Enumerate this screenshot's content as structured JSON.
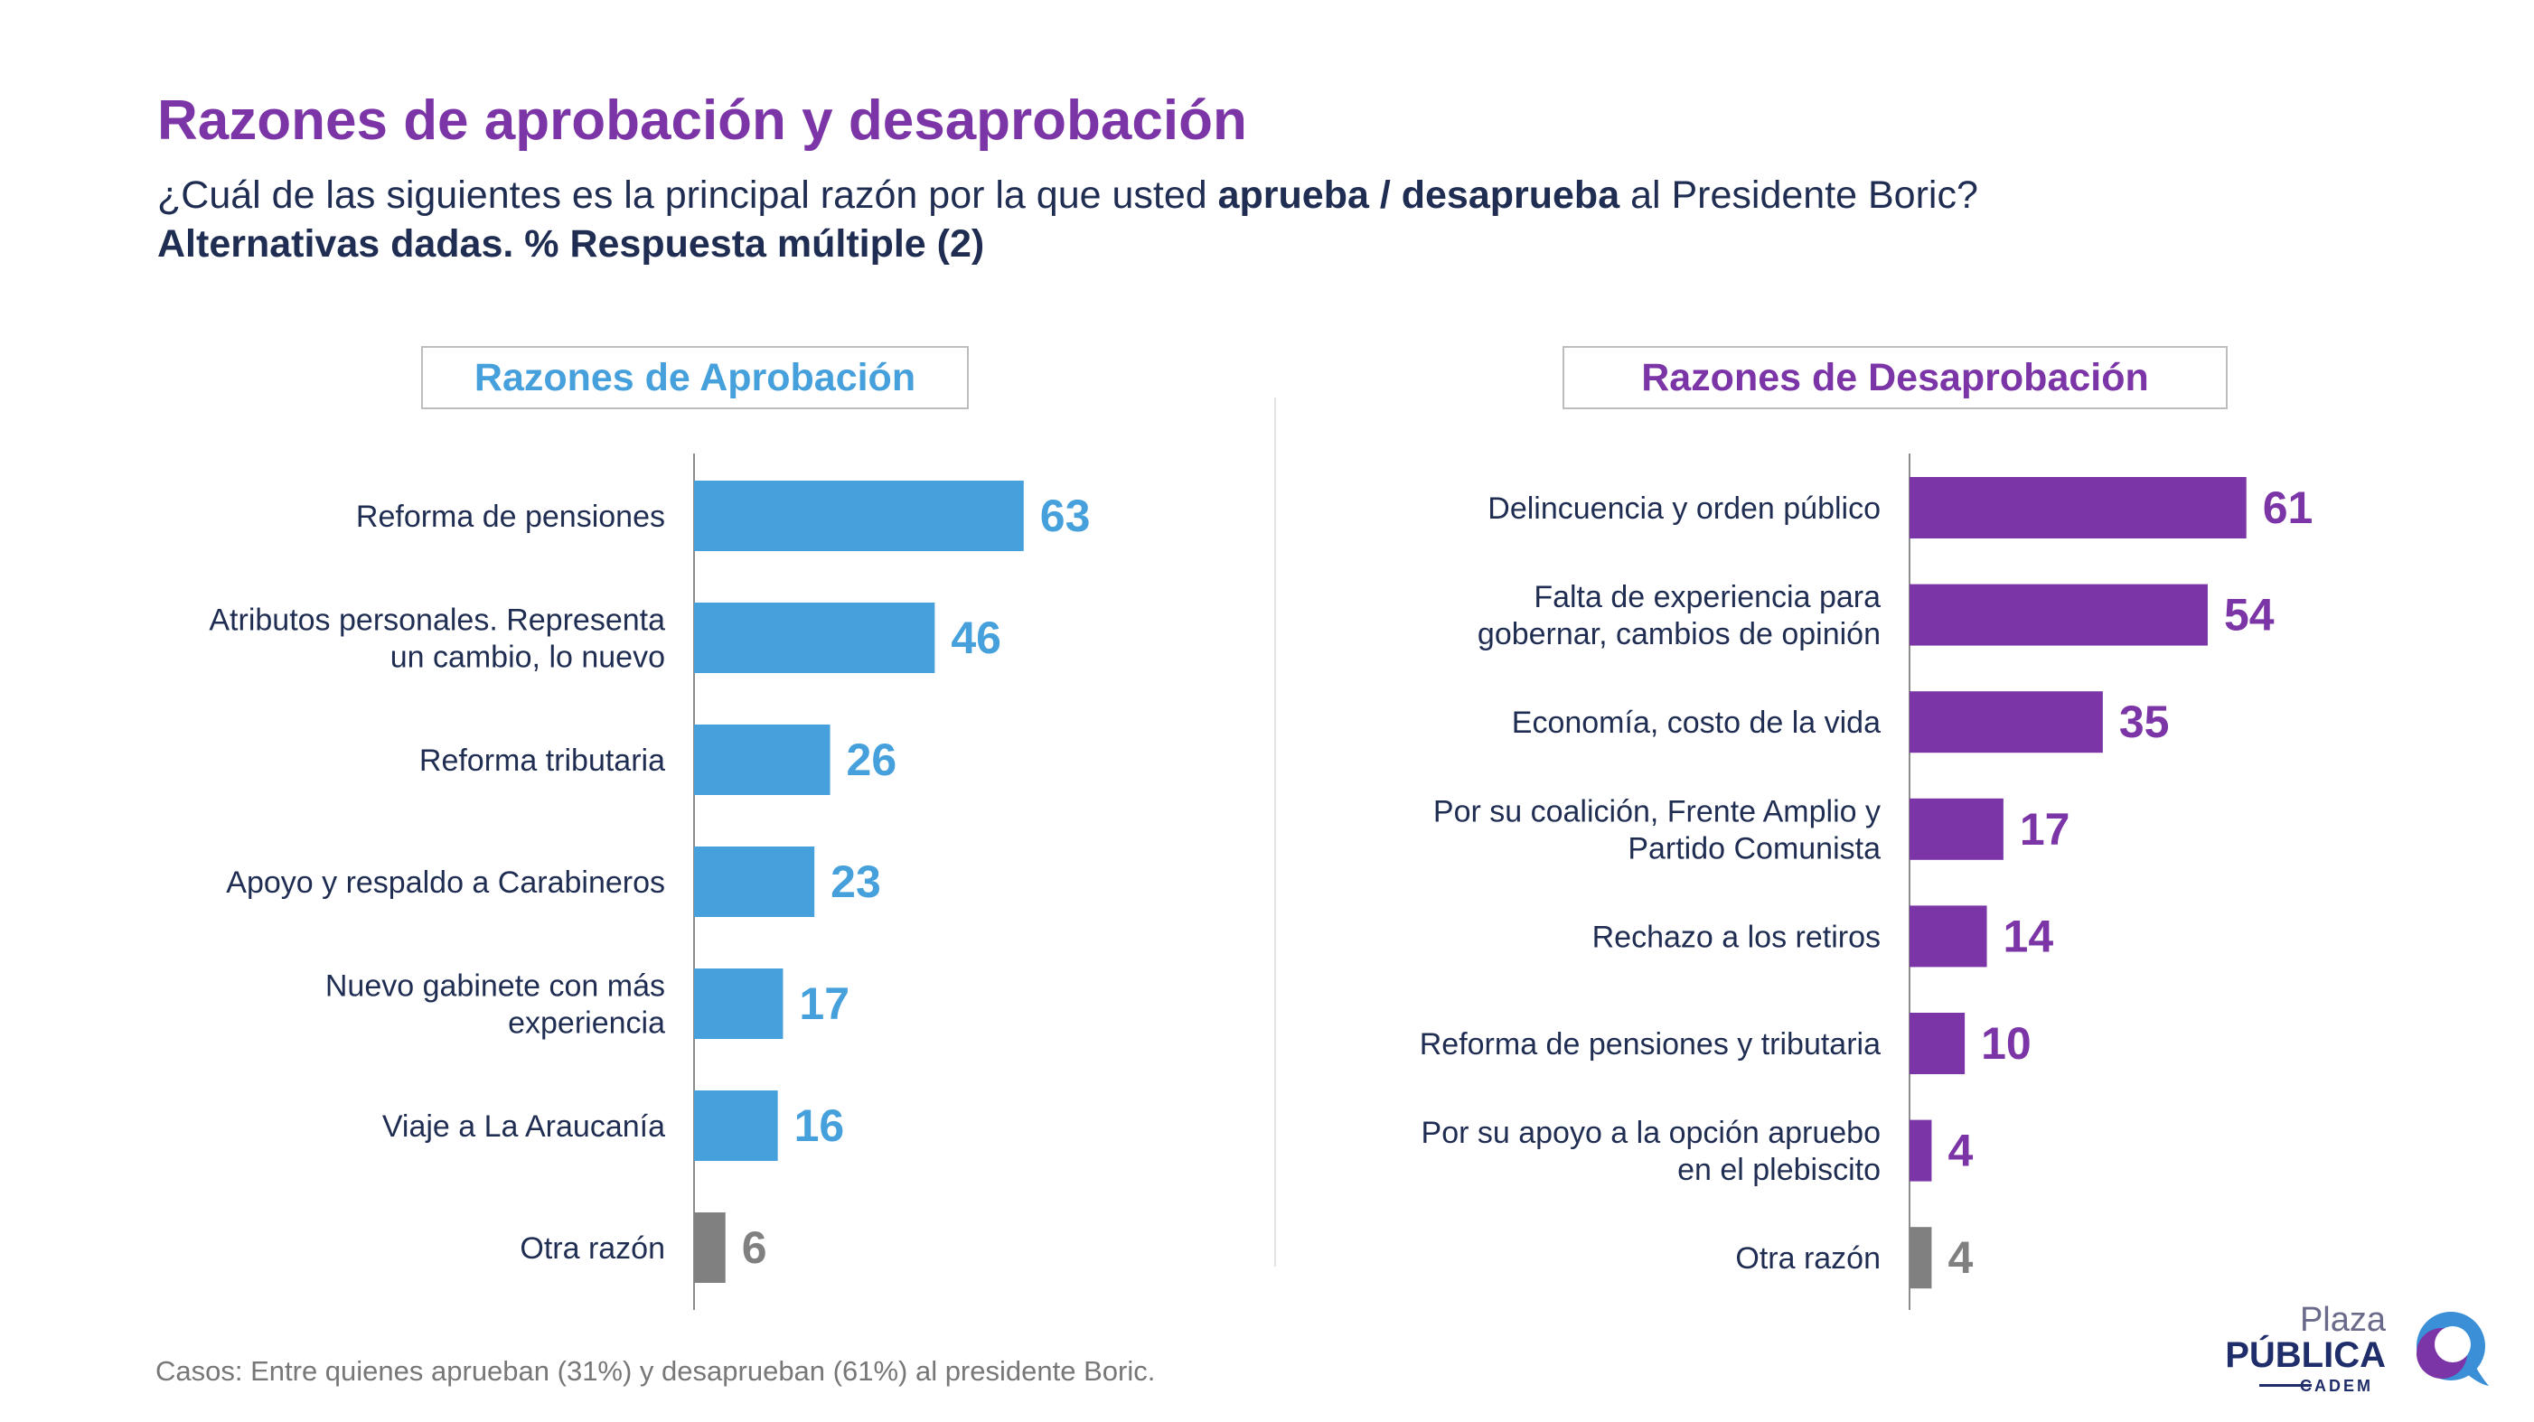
{
  "header": {
    "title": "Razones de aprobación y desaprobación",
    "question_pre": "¿Cuál de las siguientes es la principal razón por la que usted ",
    "question_bold": "aprueba / desaprueba",
    "question_post": " al Presidente Boric?",
    "note": "Alternativas dadas. % Respuesta múltiple (2)"
  },
  "colors": {
    "approval": "#45a0db",
    "disapproval": "#7b35a6",
    "other": "#808080",
    "title": "#7b35a6",
    "text": "#1f2d52"
  },
  "chart_data": [
    {
      "type": "bar",
      "orientation": "horizontal",
      "title": "Razones de Aprobación",
      "categories": [
        [
          "Reforma de pensiones"
        ],
        [
          "Atributos personales. Representa",
          "un cambio, lo nuevo"
        ],
        [
          "Reforma tributaria"
        ],
        [
          "Apoyo y respaldo a Carabineros"
        ],
        [
          "Nuevo gabinete con más",
          "experiencia"
        ],
        [
          "Viaje a La Araucanía"
        ],
        [
          "Otra razón"
        ]
      ],
      "values": [
        63,
        46,
        26,
        23,
        17,
        16,
        6
      ],
      "bar_colors": [
        "#45a0db",
        "#45a0db",
        "#45a0db",
        "#45a0db",
        "#45a0db",
        "#45a0db",
        "#808080"
      ],
      "xlim": [
        0,
        100
      ]
    },
    {
      "type": "bar",
      "orientation": "horizontal",
      "title": "Razones de Desaprobación",
      "categories": [
        [
          "Delincuencia y orden público"
        ],
        [
          "Falta de experiencia para",
          "gobernar, cambios de opinión"
        ],
        [
          "Economía, costo de la vida"
        ],
        [
          "Por su coalición, Frente Amplio y",
          "Partido Comunista"
        ],
        [
          "Rechazo a los retiros"
        ],
        [
          "Reforma de pensiones y tributaria"
        ],
        [
          "Por su apoyo a la opción apruebo",
          "en el plebiscito"
        ],
        [
          "Otra razón"
        ]
      ],
      "values": [
        61,
        54,
        35,
        17,
        14,
        10,
        4,
        4
      ],
      "bar_colors": [
        "#7b35a6",
        "#7b35a6",
        "#7b35a6",
        "#7b35a6",
        "#7b35a6",
        "#7b35a6",
        "#7b35a6",
        "#808080"
      ],
      "xlim": [
        0,
        100
      ]
    }
  ],
  "footer": {
    "label": "Casos:",
    "text": " Entre quienes aprueban (31%) y desaprueban (61%) al presidente Boric."
  },
  "logo": {
    "line1": "Plaza",
    "line2": "PÚBLICA",
    "line3": "CADEM"
  }
}
